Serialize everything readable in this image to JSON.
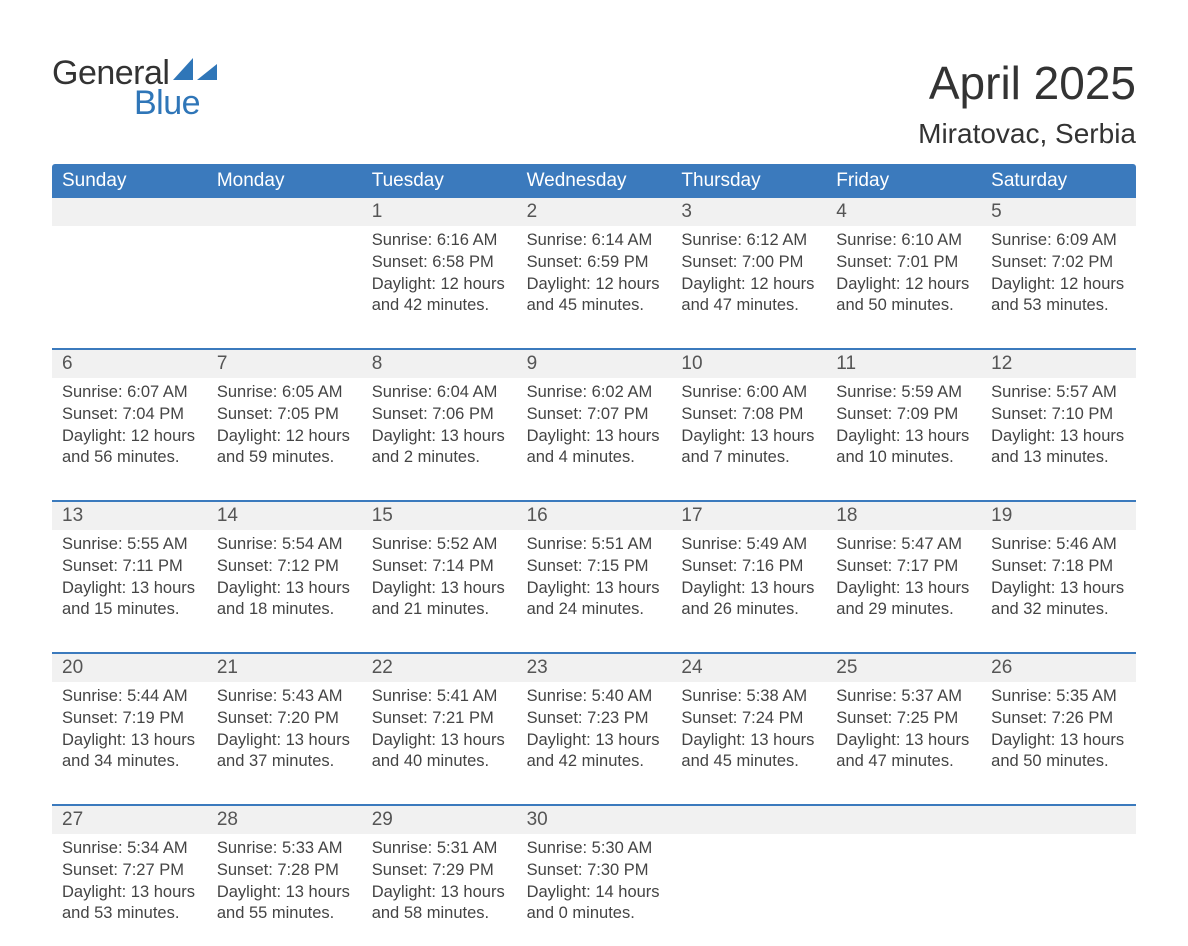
{
  "logo": {
    "line1": "General",
    "line2": "Blue",
    "sail_color": "#2f76b8"
  },
  "title": {
    "month": "April 2025",
    "location": "Miratovac, Serbia"
  },
  "colors": {
    "header_bg": "#3b7abd",
    "header_text": "#ffffff",
    "daynum_bg": "#f1f1f1",
    "row_border": "#3b7abd",
    "text": "#444444"
  },
  "day_headers": [
    "Sunday",
    "Monday",
    "Tuesday",
    "Wednesday",
    "Thursday",
    "Friday",
    "Saturday"
  ],
  "weeks": [
    [
      {
        "n": "",
        "sr": "",
        "ss": "",
        "dl1": "",
        "dl2": ""
      },
      {
        "n": "",
        "sr": "",
        "ss": "",
        "dl1": "",
        "dl2": ""
      },
      {
        "n": "1",
        "sr": "Sunrise: 6:16 AM",
        "ss": "Sunset: 6:58 PM",
        "dl1": "Daylight: 12 hours",
        "dl2": "and 42 minutes."
      },
      {
        "n": "2",
        "sr": "Sunrise: 6:14 AM",
        "ss": "Sunset: 6:59 PM",
        "dl1": "Daylight: 12 hours",
        "dl2": "and 45 minutes."
      },
      {
        "n": "3",
        "sr": "Sunrise: 6:12 AM",
        "ss": "Sunset: 7:00 PM",
        "dl1": "Daylight: 12 hours",
        "dl2": "and 47 minutes."
      },
      {
        "n": "4",
        "sr": "Sunrise: 6:10 AM",
        "ss": "Sunset: 7:01 PM",
        "dl1": "Daylight: 12 hours",
        "dl2": "and 50 minutes."
      },
      {
        "n": "5",
        "sr": "Sunrise: 6:09 AM",
        "ss": "Sunset: 7:02 PM",
        "dl1": "Daylight: 12 hours",
        "dl2": "and 53 minutes."
      }
    ],
    [
      {
        "n": "6",
        "sr": "Sunrise: 6:07 AM",
        "ss": "Sunset: 7:04 PM",
        "dl1": "Daylight: 12 hours",
        "dl2": "and 56 minutes."
      },
      {
        "n": "7",
        "sr": "Sunrise: 6:05 AM",
        "ss": "Sunset: 7:05 PM",
        "dl1": "Daylight: 12 hours",
        "dl2": "and 59 minutes."
      },
      {
        "n": "8",
        "sr": "Sunrise: 6:04 AM",
        "ss": "Sunset: 7:06 PM",
        "dl1": "Daylight: 13 hours",
        "dl2": "and 2 minutes."
      },
      {
        "n": "9",
        "sr": "Sunrise: 6:02 AM",
        "ss": "Sunset: 7:07 PM",
        "dl1": "Daylight: 13 hours",
        "dl2": "and 4 minutes."
      },
      {
        "n": "10",
        "sr": "Sunrise: 6:00 AM",
        "ss": "Sunset: 7:08 PM",
        "dl1": "Daylight: 13 hours",
        "dl2": "and 7 minutes."
      },
      {
        "n": "11",
        "sr": "Sunrise: 5:59 AM",
        "ss": "Sunset: 7:09 PM",
        "dl1": "Daylight: 13 hours",
        "dl2": "and 10 minutes."
      },
      {
        "n": "12",
        "sr": "Sunrise: 5:57 AM",
        "ss": "Sunset: 7:10 PM",
        "dl1": "Daylight: 13 hours",
        "dl2": "and 13 minutes."
      }
    ],
    [
      {
        "n": "13",
        "sr": "Sunrise: 5:55 AM",
        "ss": "Sunset: 7:11 PM",
        "dl1": "Daylight: 13 hours",
        "dl2": "and 15 minutes."
      },
      {
        "n": "14",
        "sr": "Sunrise: 5:54 AM",
        "ss": "Sunset: 7:12 PM",
        "dl1": "Daylight: 13 hours",
        "dl2": "and 18 minutes."
      },
      {
        "n": "15",
        "sr": "Sunrise: 5:52 AM",
        "ss": "Sunset: 7:14 PM",
        "dl1": "Daylight: 13 hours",
        "dl2": "and 21 minutes."
      },
      {
        "n": "16",
        "sr": "Sunrise: 5:51 AM",
        "ss": "Sunset: 7:15 PM",
        "dl1": "Daylight: 13 hours",
        "dl2": "and 24 minutes."
      },
      {
        "n": "17",
        "sr": "Sunrise: 5:49 AM",
        "ss": "Sunset: 7:16 PM",
        "dl1": "Daylight: 13 hours",
        "dl2": "and 26 minutes."
      },
      {
        "n": "18",
        "sr": "Sunrise: 5:47 AM",
        "ss": "Sunset: 7:17 PM",
        "dl1": "Daylight: 13 hours",
        "dl2": "and 29 minutes."
      },
      {
        "n": "19",
        "sr": "Sunrise: 5:46 AM",
        "ss": "Sunset: 7:18 PM",
        "dl1": "Daylight: 13 hours",
        "dl2": "and 32 minutes."
      }
    ],
    [
      {
        "n": "20",
        "sr": "Sunrise: 5:44 AM",
        "ss": "Sunset: 7:19 PM",
        "dl1": "Daylight: 13 hours",
        "dl2": "and 34 minutes."
      },
      {
        "n": "21",
        "sr": "Sunrise: 5:43 AM",
        "ss": "Sunset: 7:20 PM",
        "dl1": "Daylight: 13 hours",
        "dl2": "and 37 minutes."
      },
      {
        "n": "22",
        "sr": "Sunrise: 5:41 AM",
        "ss": "Sunset: 7:21 PM",
        "dl1": "Daylight: 13 hours",
        "dl2": "and 40 minutes."
      },
      {
        "n": "23",
        "sr": "Sunrise: 5:40 AM",
        "ss": "Sunset: 7:23 PM",
        "dl1": "Daylight: 13 hours",
        "dl2": "and 42 minutes."
      },
      {
        "n": "24",
        "sr": "Sunrise: 5:38 AM",
        "ss": "Sunset: 7:24 PM",
        "dl1": "Daylight: 13 hours",
        "dl2": "and 45 minutes."
      },
      {
        "n": "25",
        "sr": "Sunrise: 5:37 AM",
        "ss": "Sunset: 7:25 PM",
        "dl1": "Daylight: 13 hours",
        "dl2": "and 47 minutes."
      },
      {
        "n": "26",
        "sr": "Sunrise: 5:35 AM",
        "ss": "Sunset: 7:26 PM",
        "dl1": "Daylight: 13 hours",
        "dl2": "and 50 minutes."
      }
    ],
    [
      {
        "n": "27",
        "sr": "Sunrise: 5:34 AM",
        "ss": "Sunset: 7:27 PM",
        "dl1": "Daylight: 13 hours",
        "dl2": "and 53 minutes."
      },
      {
        "n": "28",
        "sr": "Sunrise: 5:33 AM",
        "ss": "Sunset: 7:28 PM",
        "dl1": "Daylight: 13 hours",
        "dl2": "and 55 minutes."
      },
      {
        "n": "29",
        "sr": "Sunrise: 5:31 AM",
        "ss": "Sunset: 7:29 PM",
        "dl1": "Daylight: 13 hours",
        "dl2": "and 58 minutes."
      },
      {
        "n": "30",
        "sr": "Sunrise: 5:30 AM",
        "ss": "Sunset: 7:30 PM",
        "dl1": "Daylight: 14 hours",
        "dl2": "and 0 minutes."
      },
      {
        "n": "",
        "sr": "",
        "ss": "",
        "dl1": "",
        "dl2": ""
      },
      {
        "n": "",
        "sr": "",
        "ss": "",
        "dl1": "",
        "dl2": ""
      },
      {
        "n": "",
        "sr": "",
        "ss": "",
        "dl1": "",
        "dl2": ""
      }
    ]
  ]
}
